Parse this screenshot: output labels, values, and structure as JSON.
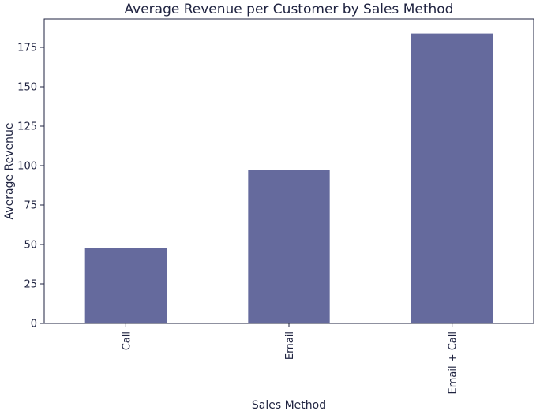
{
  "chart_data": {
    "type": "bar",
    "title": "Average Revenue per Customer by Sales Method",
    "xlabel": "Sales Method",
    "ylabel": "Average Revenue",
    "categories": [
      "Call",
      "Email",
      "Email + Call"
    ],
    "values": [
      47.6,
      97.1,
      183.7
    ],
    "ylim": [
      0,
      193
    ],
    "yticks": [
      0,
      25,
      50,
      75,
      100,
      125,
      150,
      175
    ],
    "bar_color": "#656a9d",
    "axis_color": "#1f2340",
    "grid": false,
    "legend": "none",
    "xtick_rotation": "vertical"
  }
}
